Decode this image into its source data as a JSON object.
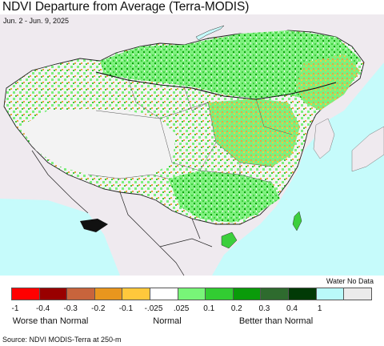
{
  "header": {
    "title": "NDVI Departure from Average (Terra-MODIS)",
    "dates": "Jun. 2 - Jun. 9, 2025"
  },
  "map": {
    "colors": {
      "ocean": "#c6fbfb",
      "land_other": "#efeaef",
      "no_data": "#e9e6ea",
      "near_normal": "#f3f3f3",
      "green_light": "#7df07d",
      "green_mid": "#3ccf3c",
      "green_dark": "#0fa40f",
      "brown": "#e7a642",
      "border": "#222222"
    }
  },
  "legend": {
    "water_no_data_label": "Water No Data",
    "swatch_colors": [
      "#ff0000",
      "#990000",
      "#c8643c",
      "#e9961e",
      "#ffc83c",
      "#ffffff",
      "#78f578",
      "#32cd32",
      "#0a9b0a",
      "#2e6b2e",
      "#013a06",
      "#b9fafa",
      "#ebebeb"
    ],
    "ticks": [
      "-1",
      "-0.4",
      "-0.3",
      "-0.2",
      "-0.1",
      "-.025",
      ".025",
      "0.1",
      "0.2",
      "0.3",
      "0.4",
      "1"
    ],
    "groups": {
      "worse": "Worse than Normal",
      "normal": "Normal",
      "better": "Better than Normal"
    }
  },
  "footer": {
    "source": "Source: NDVI MODIS-Terra at 250-m"
  }
}
